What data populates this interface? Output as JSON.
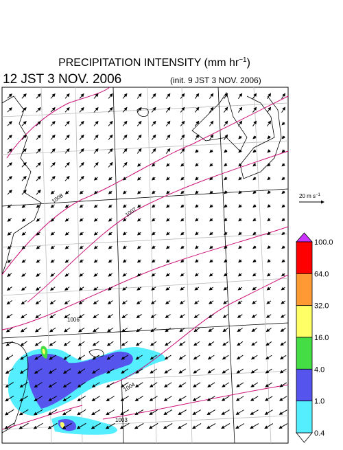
{
  "header": {
    "title": "PRECIPITATION INTENSITY (mm hr",
    "title_sup": "−1",
    "title_end": ")",
    "valid_time": "12 JST 3 NOV. 2006",
    "init_time": "(init. 9 JST 3 NOV. 2006)"
  },
  "reference_vector": {
    "label": "20 m s",
    "label_sup": "−1"
  },
  "isobars": [
    {
      "label": "1008"
    },
    {
      "label": "1007"
    },
    {
      "label": "1006"
    },
    {
      "label": "1004"
    },
    {
      "label": "1003"
    }
  ],
  "colorbar": {
    "over_color": "#cc33ff",
    "under_color": "#ffffff",
    "levels": [
      {
        "label": "100.0",
        "color": "#ff0000"
      },
      {
        "label": "64.0",
        "color": "#ff9933"
      },
      {
        "label": "32.0",
        "color": "#ffff66"
      },
      {
        "label": "16.0",
        "color": "#44dd44"
      },
      {
        "label": "4.0",
        "color": "#5555ee"
      },
      {
        "label": "1.0",
        "color": "#55eeff"
      },
      {
        "label": "0.4",
        "color": null
      }
    ]
  }
}
